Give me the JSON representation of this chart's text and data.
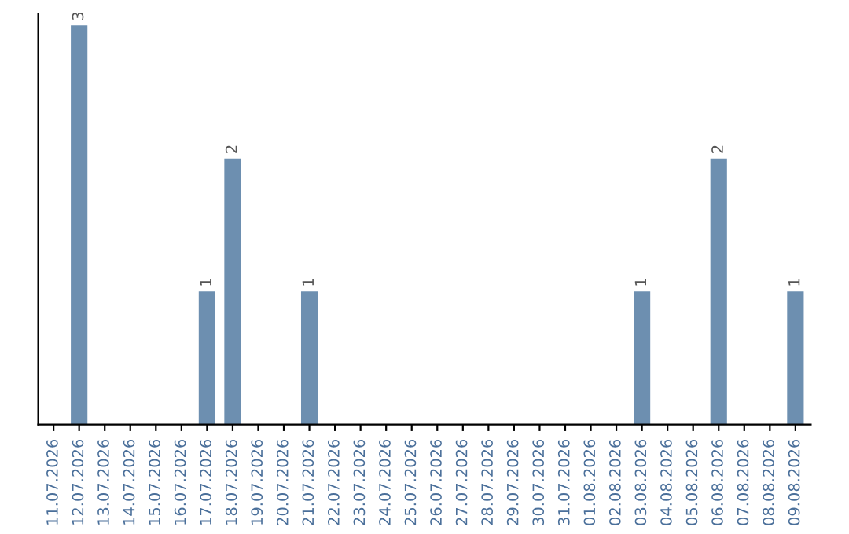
{
  "chart_data": {
    "type": "bar",
    "categories": [
      "11.07.2026",
      "12.07.2026",
      "13.07.2026",
      "14.07.2026",
      "15.07.2026",
      "16.07.2026",
      "17.07.2026",
      "18.07.2026",
      "19.07.2026",
      "20.07.2026",
      "21.07.2026",
      "22.07.2026",
      "23.07.2026",
      "24.07.2026",
      "25.07.2026",
      "26.07.2026",
      "27.07.2026",
      "28.07.2026",
      "29.07.2026",
      "30.07.2026",
      "31.07.2026",
      "01.08.2026",
      "02.08.2026",
      "03.08.2026",
      "04.08.2026",
      "05.08.2026",
      "06.08.2026",
      "07.08.2026",
      "08.08.2026",
      "09.08.2026"
    ],
    "values": [
      0,
      3,
      0,
      0,
      0,
      0,
      1,
      2,
      0,
      0,
      1,
      0,
      0,
      0,
      0,
      0,
      0,
      0,
      0,
      0,
      0,
      0,
      0,
      1,
      0,
      0,
      2,
      0,
      0,
      1
    ],
    "value_labels": [
      null,
      "3",
      null,
      null,
      null,
      null,
      "1",
      "2",
      null,
      null,
      "1",
      null,
      null,
      null,
      null,
      null,
      null,
      null,
      null,
      null,
      null,
      null,
      null,
      "1",
      null,
      null,
      "2",
      null,
      null,
      "1"
    ],
    "color": "#6d8fb0",
    "grid": false,
    "legend": false
  }
}
